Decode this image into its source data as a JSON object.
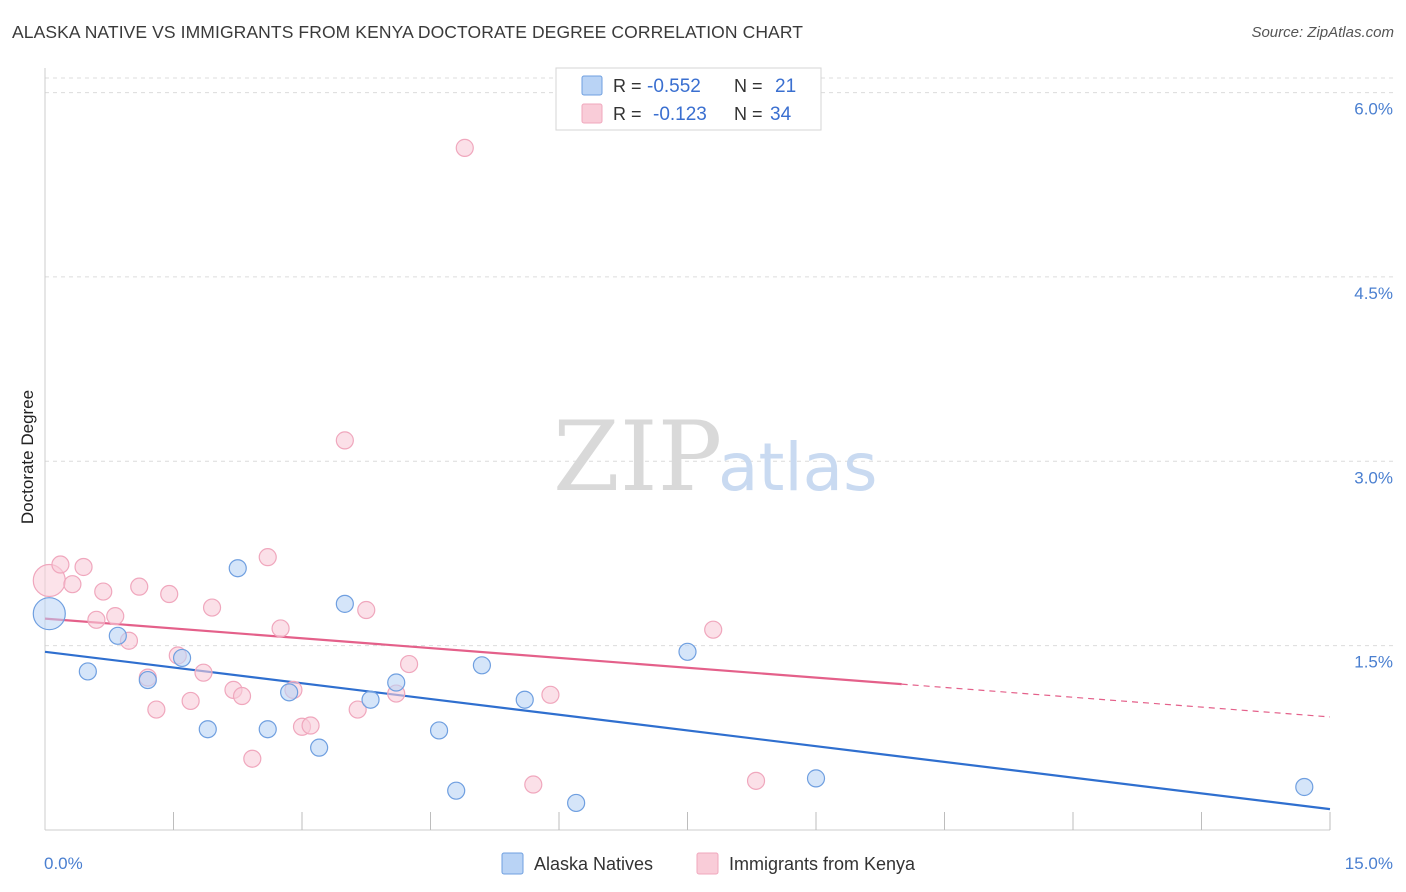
{
  "title": "ALASKA NATIVE VS IMMIGRANTS FROM KENYA DOCTORATE DEGREE CORRELATION CHART",
  "source": "Source: ZipAtlas.com",
  "watermark": {
    "zip": "ZIP",
    "atlas": "atlas"
  },
  "chart_data": {
    "type": "scatter",
    "ylabel": "Doctorate Degree",
    "xlim": [
      0,
      15
    ],
    "ylim": [
      0,
      6.2
    ],
    "x_tick_labels": {
      "left": "0.0%",
      "right": "15.0%"
    },
    "y_ticks": [
      {
        "value": 1.5,
        "label": "1.5%"
      },
      {
        "value": 3.0,
        "label": "3.0%"
      },
      {
        "value": 4.5,
        "label": "4.5%"
      },
      {
        "value": 6.0,
        "label": "6.0%"
      }
    ],
    "legend": [
      {
        "r_label": "R =",
        "r_value": "-0.552",
        "n_label": "N =",
        "n_value": "21"
      },
      {
        "r_label": "R =",
        "r_value": "-0.123",
        "n_label": "N =",
        "n_value": "34"
      }
    ],
    "series": [
      {
        "name": "Alaska Natives",
        "color": "#6f9fe0",
        "fill": "#b9d3f5",
        "line_color": "#2f6fcf",
        "trend": {
          "x0": 0,
          "y0": 1.45,
          "x1": 15,
          "y1": 0.17,
          "solid_until": 15
        },
        "points": [
          {
            "x": 0.05,
            "y": 1.76,
            "big": true
          },
          {
            "x": 0.5,
            "y": 1.29
          },
          {
            "x": 0.85,
            "y": 1.58
          },
          {
            "x": 1.2,
            "y": 1.22
          },
          {
            "x": 1.6,
            "y": 1.4
          },
          {
            "x": 1.9,
            "y": 0.82
          },
          {
            "x": 2.25,
            "y": 2.13
          },
          {
            "x": 2.6,
            "y": 0.82
          },
          {
            "x": 2.85,
            "y": 1.12
          },
          {
            "x": 3.2,
            "y": 0.67
          },
          {
            "x": 3.5,
            "y": 1.84
          },
          {
            "x": 3.8,
            "y": 1.06
          },
          {
            "x": 4.1,
            "y": 1.2
          },
          {
            "x": 4.6,
            "y": 0.81
          },
          {
            "x": 4.8,
            "y": 0.32
          },
          {
            "x": 5.1,
            "y": 1.34
          },
          {
            "x": 5.6,
            "y": 1.06
          },
          {
            "x": 6.2,
            "y": 0.22
          },
          {
            "x": 7.5,
            "y": 1.45
          },
          {
            "x": 9.0,
            "y": 0.42
          },
          {
            "x": 14.7,
            "y": 0.35
          }
        ]
      },
      {
        "name": "Immigrants from Kenya",
        "color": "#f0a7bd",
        "fill": "#f9ccd8",
        "line_color": "#e4608a",
        "trend": {
          "x0": 0,
          "y0": 1.72,
          "x1": 15,
          "y1": 0.92,
          "solid_until": 10.0
        },
        "points": [
          {
            "x": 0.05,
            "y": 2.03,
            "big": true
          },
          {
            "x": 0.18,
            "y": 2.16
          },
          {
            "x": 0.32,
            "y": 2.0
          },
          {
            "x": 0.45,
            "y": 2.14
          },
          {
            "x": 0.6,
            "y": 1.71
          },
          {
            "x": 0.68,
            "y": 1.94
          },
          {
            "x": 0.82,
            "y": 1.74
          },
          {
            "x": 0.98,
            "y": 1.54
          },
          {
            "x": 1.1,
            "y": 1.98
          },
          {
            "x": 1.2,
            "y": 1.24
          },
          {
            "x": 1.3,
            "y": 0.98
          },
          {
            "x": 1.45,
            "y": 1.92
          },
          {
            "x": 1.55,
            "y": 1.42
          },
          {
            "x": 1.7,
            "y": 1.05
          },
          {
            "x": 1.85,
            "y": 1.28
          },
          {
            "x": 1.95,
            "y": 1.81
          },
          {
            "x": 2.2,
            "y": 1.14
          },
          {
            "x": 2.3,
            "y": 1.09
          },
          {
            "x": 2.42,
            "y": 0.58
          },
          {
            "x": 2.6,
            "y": 2.22
          },
          {
            "x": 2.75,
            "y": 1.64
          },
          {
            "x": 2.9,
            "y": 1.14
          },
          {
            "x": 3.0,
            "y": 0.84
          },
          {
            "x": 3.1,
            "y": 0.85
          },
          {
            "x": 3.5,
            "y": 3.17
          },
          {
            "x": 3.65,
            "y": 0.98
          },
          {
            "x": 3.75,
            "y": 1.79
          },
          {
            "x": 4.1,
            "y": 1.11
          },
          {
            "x": 4.25,
            "y": 1.35
          },
          {
            "x": 4.9,
            "y": 5.55
          },
          {
            "x": 5.7,
            "y": 0.37
          },
          {
            "x": 5.9,
            "y": 1.1
          },
          {
            "x": 7.8,
            "y": 1.63
          },
          {
            "x": 8.3,
            "y": 0.4
          }
        ]
      }
    ]
  }
}
